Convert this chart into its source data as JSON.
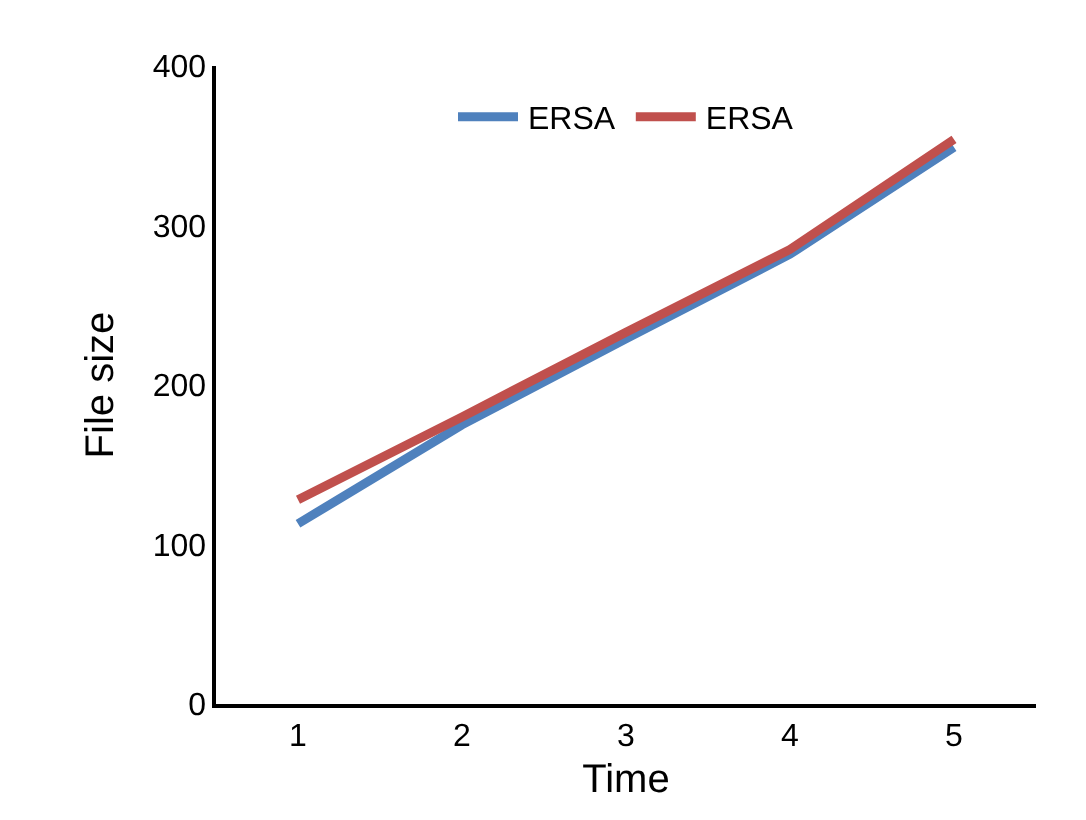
{
  "chart_data": {
    "type": "line",
    "xlabel": "Time",
    "ylabel": "File size",
    "categories": [
      "1",
      "2",
      "3",
      "4",
      "5"
    ],
    "series": [
      {
        "name": "ERSA",
        "color": "#4f81bd",
        "values": [
          113,
          175,
          229,
          282,
          349
        ]
      },
      {
        "name": "ERSA",
        "color": "#c0504d",
        "values": [
          128,
          180,
          233,
          285,
          354
        ]
      }
    ],
    "ylim": [
      0,
      400
    ],
    "yticks": [
      0,
      100,
      200,
      300,
      400
    ],
    "grid": false,
    "legend": "top",
    "marker": "none",
    "line_style": "solid"
  }
}
